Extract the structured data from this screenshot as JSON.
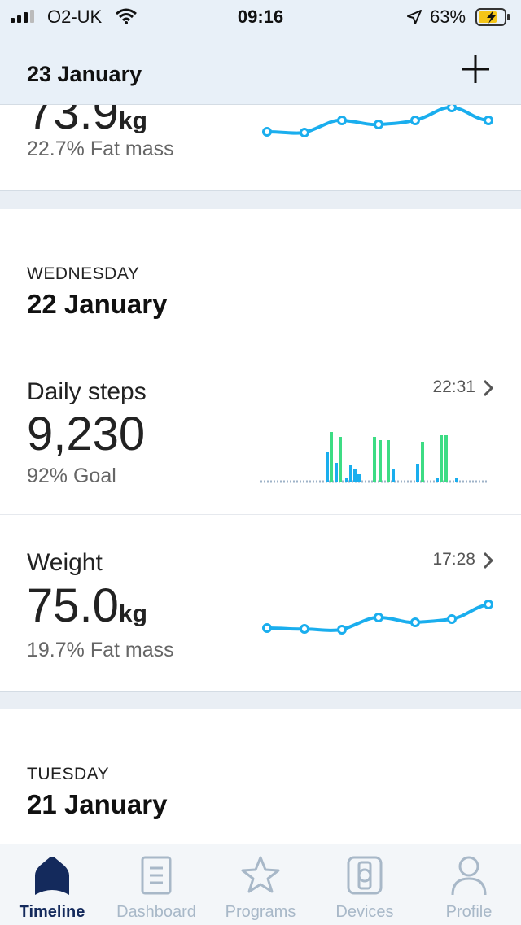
{
  "status_bar": {
    "carrier": "O2-UK",
    "time": "09:16",
    "battery": "63%"
  },
  "header": {
    "date": "23 January"
  },
  "top_card": {
    "value": "73.9",
    "unit": "kg",
    "sub": "22.7% Fat mass"
  },
  "day1": {
    "weekday": "WEDNESDAY",
    "date": "22 January",
    "steps": {
      "title": "Daily steps",
      "time": "22:31",
      "value": "9,230",
      "sub": "92% Goal"
    },
    "weight": {
      "title": "Weight",
      "time": "17:28",
      "value": "75.0",
      "unit": "kg",
      "sub": "19.7% Fat mass"
    }
  },
  "day2": {
    "weekday": "TUESDAY",
    "date": "21 January"
  },
  "tabs": [
    {
      "label": "Timeline",
      "icon": "timeline-icon"
    },
    {
      "label": "Dashboard",
      "icon": "dashboard-icon"
    },
    {
      "label": "Programs",
      "icon": "star-icon"
    },
    {
      "label": "Devices",
      "icon": "watch-icon"
    },
    {
      "label": "Profile",
      "icon": "person-icon"
    }
  ],
  "colors": {
    "line": "#1aaeee",
    "bar_green": "#3ddc84",
    "bar_blue": "#1aaeee",
    "active_tab": "#142a5c",
    "inactive_tab": "#a8b8c8"
  }
}
